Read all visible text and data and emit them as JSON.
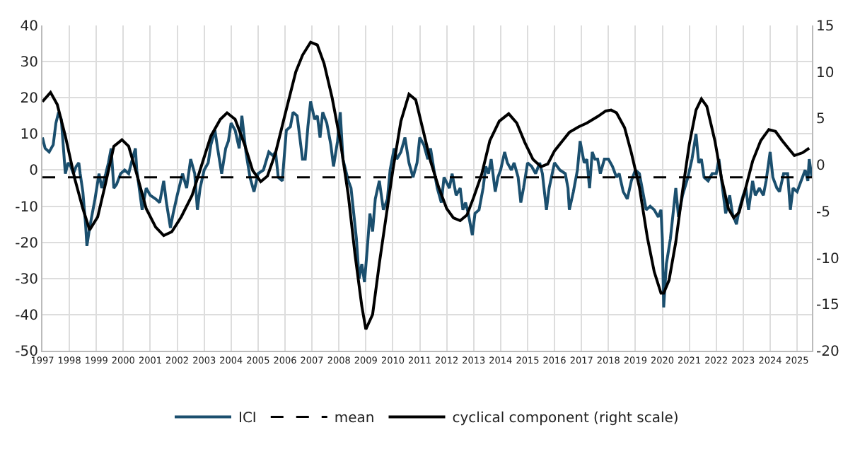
{
  "chart_data": {
    "type": "line",
    "xlim": [
      1997,
      2025.55
    ],
    "xticks": [
      {
        "value": 1997,
        "label": "1997"
      },
      {
        "value": 1998,
        "label": "1998"
      },
      {
        "value": 1999,
        "label": "1999"
      },
      {
        "value": 2000,
        "label": "2000"
      },
      {
        "value": 2001,
        "label": "2001"
      },
      {
        "value": 2002,
        "label": "2002"
      },
      {
        "value": 2003,
        "label": "2003"
      },
      {
        "value": 2004,
        "label": "2004"
      },
      {
        "value": 2005,
        "label": "2005"
      },
      {
        "value": 2006,
        "label": "2006"
      },
      {
        "value": 2007,
        "label": "2007"
      },
      {
        "value": 2008,
        "label": "2008"
      },
      {
        "value": 2009,
        "label": "2009"
      },
      {
        "value": 2010,
        "label": "2010"
      },
      {
        "value": 2011,
        "label": "2011"
      },
      {
        "value": 2012,
        "label": "2012"
      },
      {
        "value": 2013,
        "label": "2013"
      },
      {
        "value": 2014,
        "label": "2014"
      },
      {
        "value": 2015,
        "label": "2015"
      },
      {
        "value": 2016,
        "label": "2016"
      },
      {
        "value": 2017,
        "label": "2017"
      },
      {
        "value": 2018,
        "label": "2018"
      },
      {
        "value": 2019,
        "label": "2019"
      },
      {
        "value": 2020,
        "label": "2020"
      },
      {
        "value": 2021,
        "label": "2021"
      },
      {
        "value": 2022,
        "label": "2022"
      },
      {
        "value": 2023,
        "label": "2023"
      },
      {
        "value": 2024,
        "label": "2024"
      },
      {
        "value": 2025,
        "label": "2025"
      }
    ],
    "ylim": [
      -50,
      40
    ],
    "yticks": [
      -50,
      -40,
      -30,
      -20,
      -10,
      0,
      10,
      20,
      30,
      40
    ],
    "y2lim": [
      -20,
      15
    ],
    "y2ticks": [
      -20,
      -15,
      -10,
      -5,
      0,
      5,
      10,
      15
    ],
    "grid": true,
    "legend": "bottom",
    "marker": "none",
    "series": [
      {
        "name": "ICI",
        "color": "#1b4f6e",
        "line_style": "solid",
        "x": [
          1997.0,
          1997.1,
          1997.25,
          1997.4,
          1997.5,
          1997.6,
          1997.7,
          1997.75,
          1997.85,
          1997.95,
          1998.05,
          1998.15,
          1998.25,
          1998.35,
          1998.4,
          1998.5,
          1998.6,
          1998.65,
          1998.75,
          1998.85,
          1998.95,
          1999.1,
          1999.2,
          1999.35,
          1999.45,
          1999.55,
          1999.65,
          1999.75,
          1999.9,
          2000.05,
          2000.2,
          2000.3,
          2000.45,
          2000.5,
          2000.7,
          2000.85,
          2001.0,
          2001.2,
          2001.35,
          2001.5,
          2001.6,
          2001.75,
          2001.85,
          2002.0,
          2002.2,
          2002.35,
          2002.5,
          2002.65,
          2002.75,
          2002.85,
          2003.0,
          2003.15,
          2003.25,
          2003.4,
          2003.5,
          2003.65,
          2003.8,
          2003.9,
          2004.0,
          2004.15,
          2004.3,
          2004.4,
          2004.55,
          2004.7,
          2004.85,
          2005.0,
          2005.2,
          2005.4,
          2005.55,
          2005.65,
          2005.75,
          2005.9,
          2006.05,
          2006.2,
          2006.3,
          2006.45,
          2006.65,
          2006.75,
          2006.85,
          2006.95,
          2007.1,
          2007.2,
          2007.3,
          2007.4,
          2007.55,
          2007.7,
          2007.8,
          2007.95,
          2008.05,
          2008.15,
          2008.25,
          2008.35,
          2008.45,
          2008.55,
          2008.65,
          2008.75,
          2008.85,
          2008.95,
          2009.05,
          2009.15,
          2009.25,
          2009.35,
          2009.5,
          2009.65,
          2009.8,
          2009.9,
          2010.05,
          2010.15,
          2010.3,
          2010.45,
          2010.6,
          2010.75,
          2010.9,
          2011.0,
          2011.15,
          2011.3,
          2011.4,
          2011.55,
          2011.65,
          2011.8,
          2011.9,
          2012.1,
          2012.2,
          2012.35,
          2012.5,
          2012.6,
          2012.7,
          2012.8,
          2012.95,
          2013.05,
          2013.2,
          2013.35,
          2013.45,
          2013.55,
          2013.65,
          2013.8,
          2013.9,
          2014.0,
          2014.15,
          2014.25,
          2014.4,
          2014.5,
          2014.65,
          2014.75,
          2014.85,
          2015.0,
          2015.15,
          2015.3,
          2015.45,
          2015.55,
          2015.7,
          2015.8,
          2016.0,
          2016.2,
          2016.4,
          2016.5,
          2016.55,
          2016.7,
          2016.85,
          2016.95,
          2017.1,
          2017.2,
          2017.3,
          2017.4,
          2017.5,
          2017.6,
          2017.7,
          2017.85,
          2018.0,
          2018.15,
          2018.3,
          2018.4,
          2018.55,
          2018.7,
          2018.85,
          2019.0,
          2019.15,
          2019.3,
          2019.4,
          2019.55,
          2019.7,
          2019.85,
          2019.95,
          2020.0,
          2020.05,
          2020.15,
          2020.3,
          2020.4,
          2020.5,
          2020.6,
          2020.75,
          2020.95,
          2021.1,
          2021.25,
          2021.35,
          2021.45,
          2021.55,
          2021.7,
          2021.85,
          2022.0,
          2022.1,
          2022.2,
          2022.35,
          2022.5,
          2022.6,
          2022.75,
          2022.85,
          2023.0,
          2023.1,
          2023.2,
          2023.35,
          2023.45,
          2023.6,
          2023.75,
          2023.85,
          2024.0,
          2024.1,
          2024.25,
          2024.35,
          2024.5,
          2024.65,
          2024.75,
          2024.85,
          2025.0,
          2025.15,
          2025.3,
          2025.4,
          2025.45,
          2025.55
        ],
        "values": [
          9,
          6,
          5,
          7,
          13,
          16,
          14,
          9,
          -1,
          2,
          1,
          -1,
          1,
          2,
          -1,
          -6,
          -15,
          -21,
          -16,
          -12,
          -8,
          -1,
          -5,
          -1,
          2,
          6,
          -5,
          -4,
          -1,
          0,
          -1,
          2,
          6,
          0,
          -11,
          -5,
          -7,
          -8,
          -9,
          -3,
          -9,
          -16,
          -12,
          -7,
          -1,
          -5,
          3,
          -1,
          -11,
          -5,
          0,
          2,
          7,
          11,
          6,
          -1,
          6,
          8,
          13,
          11,
          6,
          15,
          5,
          -2,
          -6,
          -1,
          0,
          5,
          4,
          5,
          -2,
          -3,
          11,
          12,
          16,
          15,
          3,
          3,
          12,
          19,
          14,
          15,
          9,
          16,
          13,
          7,
          1,
          8,
          16,
          3,
          0,
          -3,
          -5,
          -12,
          -19,
          -30,
          -26,
          -31,
          -22,
          -12,
          -17,
          -8,
          -3,
          -11,
          -8,
          0,
          6,
          3,
          5,
          9,
          2,
          -2,
          2,
          9,
          7,
          3,
          6,
          -1,
          -5,
          -9,
          -2,
          -5,
          -1,
          -7,
          -5,
          -11,
          -9,
          -12,
          -18,
          -12,
          -11,
          -5,
          1,
          -1,
          3,
          -6,
          -2,
          0,
          5,
          2,
          0,
          2,
          -2,
          -9,
          -5,
          2,
          1,
          -1,
          2,
          -1,
          -11,
          -5,
          2,
          0,
          -1,
          -5,
          -11,
          -6,
          0,
          8,
          2,
          3,
          -5,
          5,
          3,
          3,
          -1,
          3,
          3,
          1,
          -2,
          -1,
          -6,
          -8,
          -3,
          0,
          -1,
          -7,
          -11,
          -10,
          -11,
          -13,
          -11,
          -19,
          -38,
          -26,
          -19,
          -12,
          -5,
          -13,
          -7,
          -2,
          3,
          10,
          2,
          3,
          -2,
          -3,
          -1,
          -1,
          3,
          -3,
          -12,
          -7,
          -12,
          -15,
          -11,
          -7,
          -5,
          -11,
          -3,
          -7,
          -5,
          -7,
          -3,
          5,
          -2,
          -5,
          -6,
          -1,
          -1,
          -11,
          -5,
          -6,
          -3,
          0,
          -3,
          3,
          -2
        ]
      },
      {
        "name": "cyclical component (right scale)",
        "color": "#000000",
        "line_style": "solid",
        "axis": "y2",
        "x": [
          1997.0,
          1997.3,
          1997.55,
          1997.85,
          1998.2,
          1998.5,
          1998.75,
          1999.05,
          1999.35,
          1999.65,
          1999.95,
          2000.2,
          2000.5,
          2000.85,
          2001.2,
          2001.5,
          2001.8,
          2002.15,
          2002.55,
          2002.9,
          2003.25,
          2003.6,
          2003.85,
          2004.15,
          2004.5,
          2004.8,
          2005.1,
          2005.35,
          2005.65,
          2006.0,
          2006.4,
          2006.65,
          2006.95,
          2007.2,
          2007.45,
          2007.75,
          2008.05,
          2008.35,
          2008.6,
          2008.85,
          2009.0,
          2009.25,
          2009.5,
          2009.75,
          2010.0,
          2010.3,
          2010.6,
          2010.85,
          2011.1,
          2011.4,
          2011.7,
          2012.0,
          2012.25,
          2012.5,
          2012.75,
          2013.0,
          2013.3,
          2013.6,
          2013.95,
          2014.3,
          2014.6,
          2014.9,
          2015.2,
          2015.5,
          2015.75,
          2016.0,
          2016.3,
          2016.55,
          2016.9,
          2017.2,
          2017.6,
          2017.9,
          2018.1,
          2018.3,
          2018.6,
          2018.85,
          2019.15,
          2019.45,
          2019.7,
          2019.95,
          2020.05,
          2020.25,
          2020.5,
          2020.75,
          2021.0,
          2021.25,
          2021.45,
          2021.65,
          2021.95,
          2022.2,
          2022.45,
          2022.65,
          2022.85,
          2023.1,
          2023.35,
          2023.65,
          2023.95,
          2024.2,
          2024.45,
          2024.7,
          2024.9,
          2025.2,
          2025.45
        ],
        "values": [
          6.8,
          7.8,
          6.5,
          3.1,
          -1.5,
          -4.7,
          -7,
          -5.6,
          -1.9,
          2,
          2.7,
          2,
          -1,
          -4.7,
          -6.7,
          -7.6,
          -7.2,
          -5.6,
          -3.3,
          -0.1,
          3.1,
          4.9,
          5.6,
          4.9,
          2.2,
          -0.6,
          -1.8,
          -1.2,
          1.3,
          5.4,
          10,
          11.8,
          13.2,
          12.9,
          10.9,
          7.2,
          2.6,
          -3.3,
          -9.7,
          -15.2,
          -17.7,
          -16.1,
          -10.6,
          -5.6,
          -0.6,
          4.7,
          7.6,
          7,
          4,
          0.4,
          -2.4,
          -4.7,
          -5.7,
          -6,
          -5.4,
          -3.5,
          -1,
          2.6,
          4.7,
          5.5,
          4.5,
          2.4,
          0.6,
          -0.2,
          0.1,
          1.5,
          2.6,
          3.5,
          4.1,
          4.5,
          5.2,
          5.8,
          5.9,
          5.6,
          4,
          1.3,
          -2.4,
          -7.9,
          -11.5,
          -13.8,
          -13.8,
          -12.4,
          -8.3,
          -2.8,
          2.2,
          5.9,
          7.1,
          6.3,
          2.6,
          -1.5,
          -4.7,
          -5.7,
          -5.1,
          -2.4,
          0.4,
          2.6,
          3.8,
          3.6,
          2.6,
          1.7,
          1,
          1.3,
          1.8
        ]
      }
    ],
    "ref_lines": [
      {
        "axis": "y",
        "value": -2,
        "label": "mean",
        "color": "#000000",
        "line_style": "dashed"
      }
    ]
  }
}
